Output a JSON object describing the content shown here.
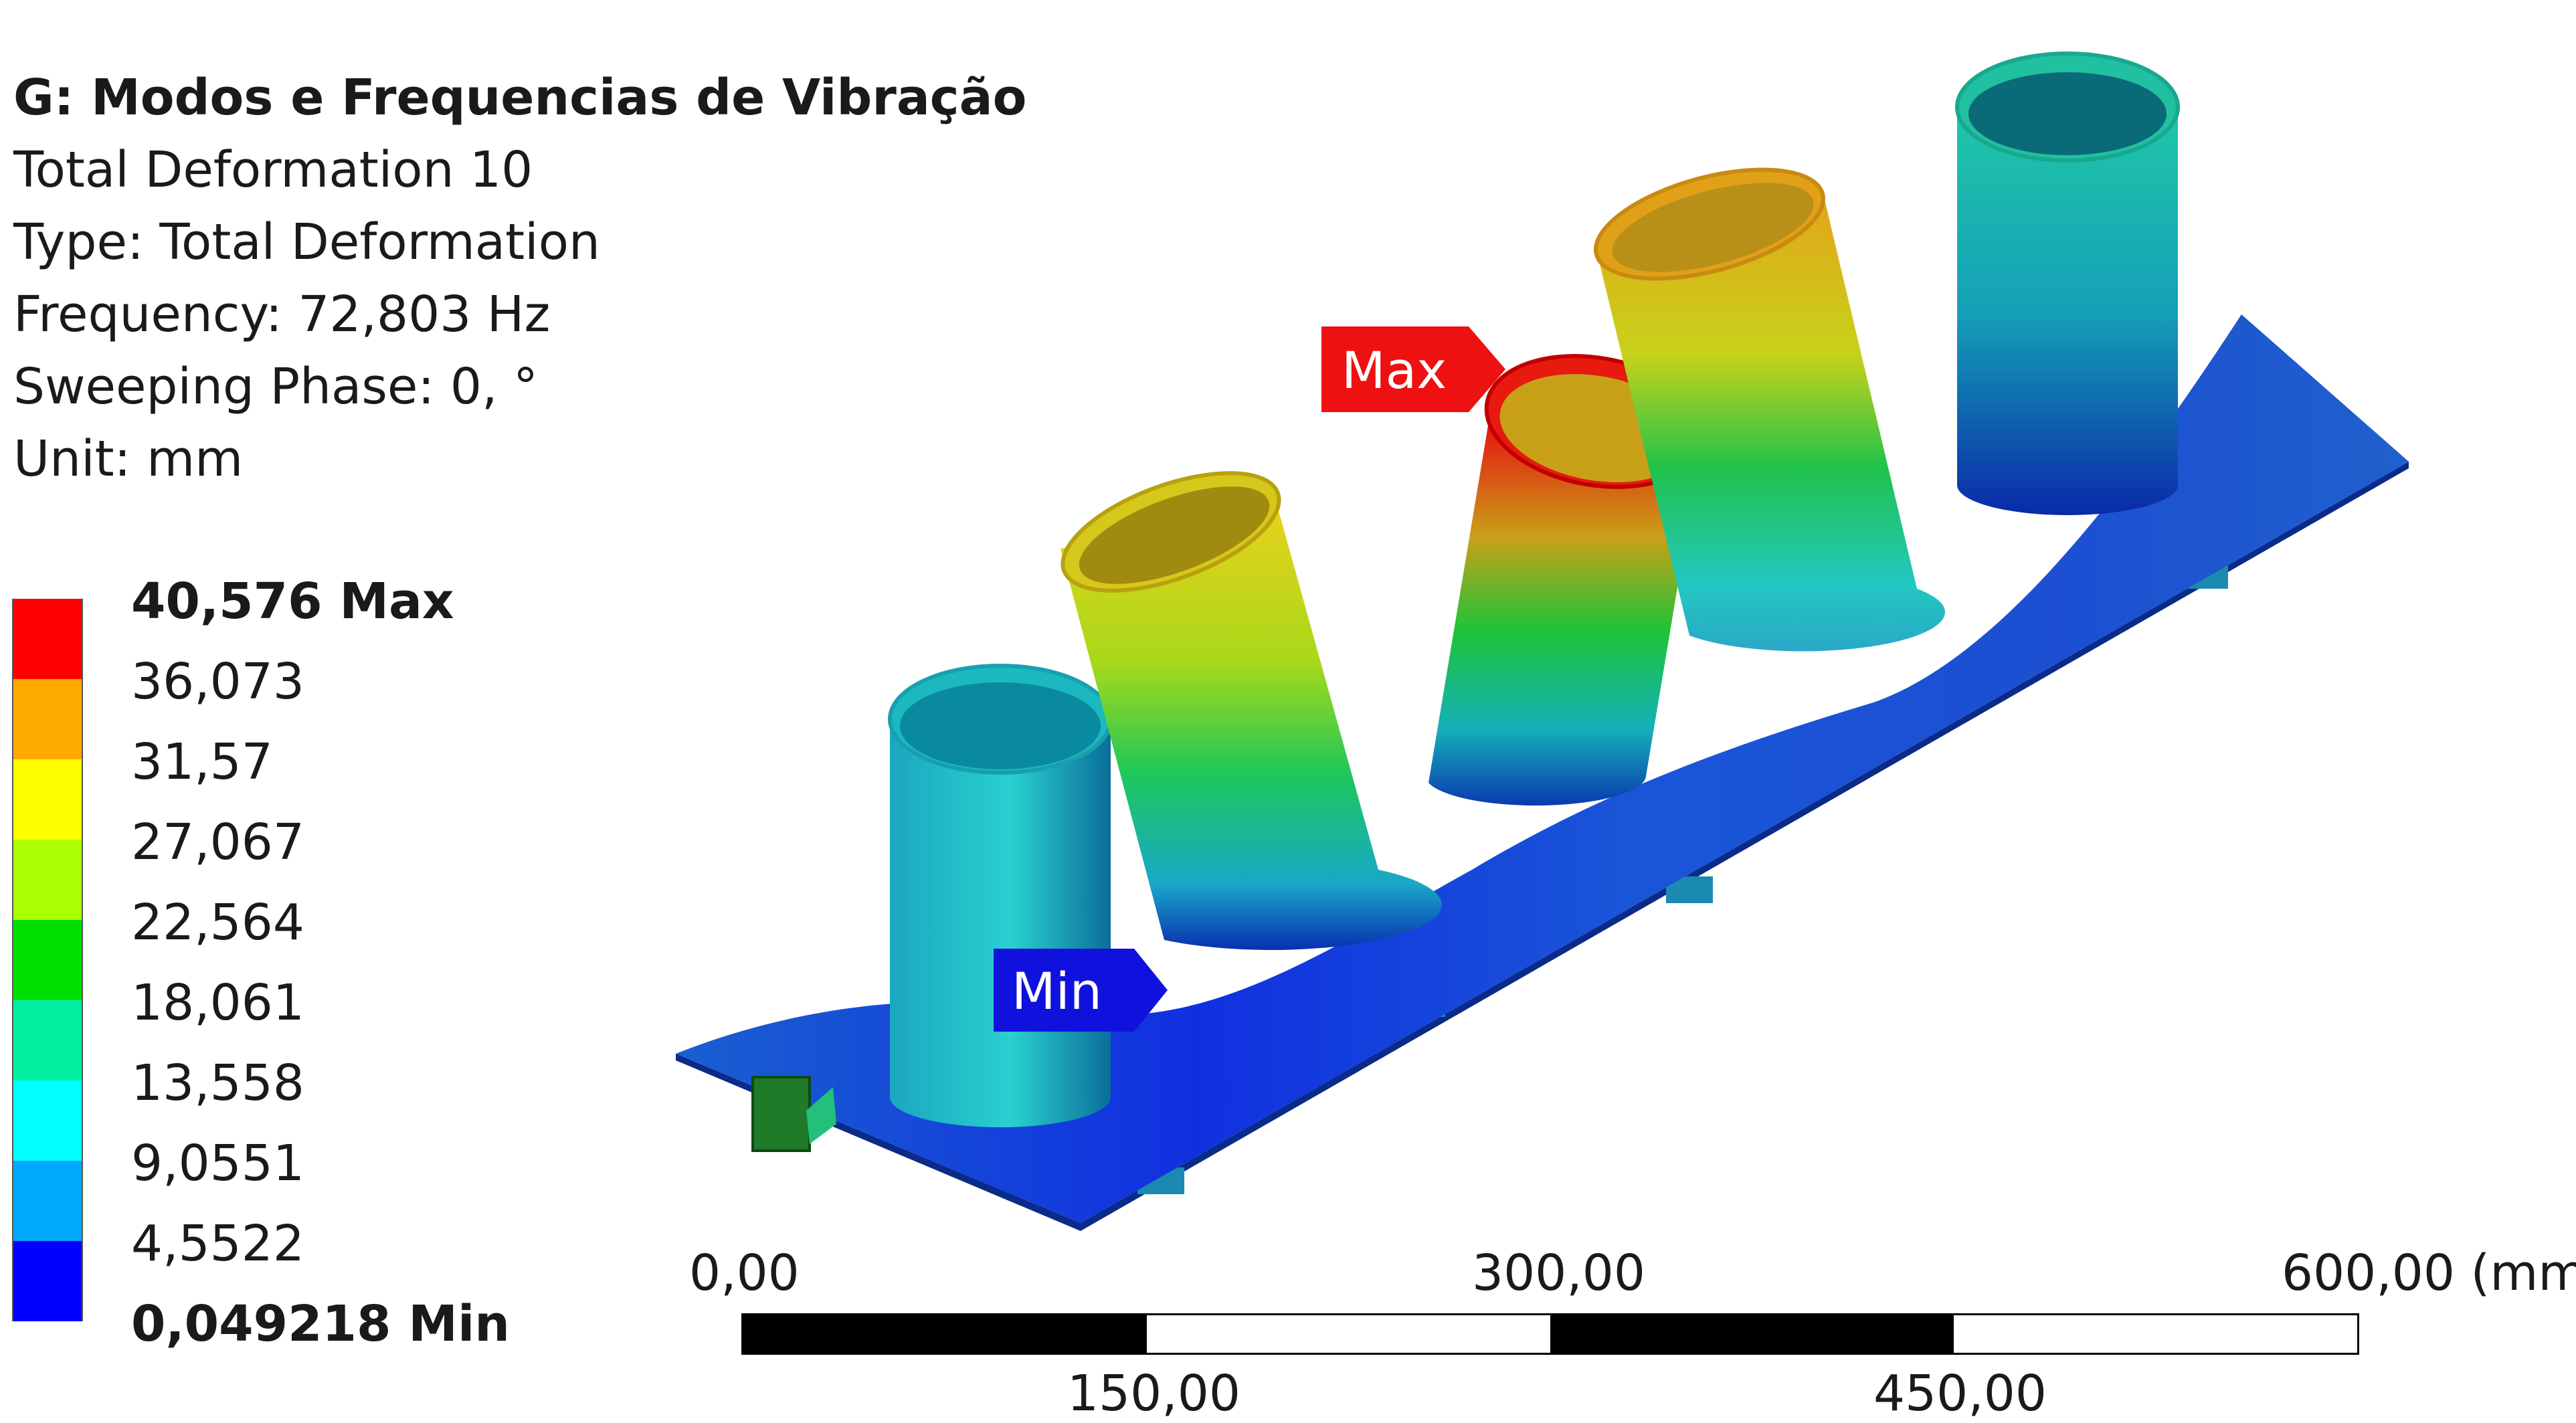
{
  "header": {
    "title": "G: Modos e Frequencias de Vibração",
    "lines": [
      "Total Deformation 10",
      "Type: Total Deformation",
      "Frequency: 72,803 Hz",
      "Sweeping Phase: 0, °",
      "Unit: mm"
    ]
  },
  "legend": {
    "levels": [
      {
        "label": "40,576 Max",
        "color": "#ff0000",
        "bold": true
      },
      {
        "label": "36,073",
        "color": "#ffaa00",
        "bold": false
      },
      {
        "label": "31,57",
        "color": "#ffff00",
        "bold": false
      },
      {
        "label": "27,067",
        "color": "#aaff00",
        "bold": false
      },
      {
        "label": "22,564",
        "color": "#00e000",
        "bold": false
      },
      {
        "label": "18,061",
        "color": "#00f0a0",
        "bold": false
      },
      {
        "label": "13,558",
        "color": "#00ffff",
        "bold": false
      },
      {
        "label": "9,0551",
        "color": "#00aaff",
        "bold": false
      },
      {
        "label": "4,5522",
        "color": "#0000ff",
        "bold": false
      },
      {
        "label": "0,049218 Min",
        "color": "#0000ff",
        "bold": true
      }
    ]
  },
  "probes": {
    "max": {
      "label": "Max",
      "color": "#ee1111"
    },
    "min": {
      "label": "Min",
      "color": "#1111dd"
    }
  },
  "scale": {
    "top_ticks": [
      "0,00",
      "300,00",
      "600,00 (mm)"
    ],
    "bottom_ticks": [
      "150,00",
      "450,00"
    ]
  }
}
